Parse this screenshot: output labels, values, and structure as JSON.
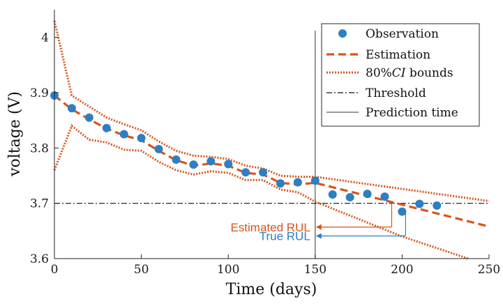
{
  "chart_data": {
    "type": "line",
    "title": "",
    "xlabel": "Time (days)",
    "ylabel": "voltage (V)",
    "xlim": [
      0,
      250
    ],
    "ylim": [
      3.6,
      4.05
    ],
    "xticks": [
      0,
      50,
      100,
      150,
      200,
      250
    ],
    "yticks": [
      3.6,
      3.7,
      3.8,
      3.9,
      4.0
    ],
    "ytick_labels": [
      "3.6",
      "3.7",
      "3.8",
      "3.9",
      "4"
    ],
    "grid": false,
    "legend_position": "top-right",
    "colors": {
      "observation": "#2e7fc2",
      "estimation": "#d9541a",
      "threshold": "#111111",
      "prediction_time": "#333333",
      "estimated_rul": "#d9541a",
      "true_rul": "#2e7fc2"
    },
    "series": [
      {
        "name": "Observation",
        "style": "markers",
        "x": [
          0,
          10,
          20,
          30,
          40,
          50,
          60,
          70,
          80,
          90,
          100,
          110,
          120,
          130,
          140,
          150,
          160,
          170,
          180,
          190,
          200,
          210,
          220
        ],
        "y": [
          3.895,
          3.872,
          3.855,
          3.836,
          3.825,
          3.818,
          3.798,
          3.779,
          3.77,
          3.776,
          3.771,
          3.756,
          3.756,
          3.736,
          3.738,
          3.741,
          3.716,
          3.711,
          3.717,
          3.712,
          3.685,
          3.699,
          3.696
        ]
      },
      {
        "name": "Estimation",
        "style": "dashed",
        "x": [
          0,
          10,
          20,
          30,
          40,
          50,
          60,
          70,
          80,
          90,
          100,
          110,
          120,
          130,
          140,
          150,
          250
        ],
        "y": [
          3.895,
          3.87,
          3.852,
          3.835,
          3.823,
          3.814,
          3.795,
          3.778,
          3.768,
          3.772,
          3.768,
          3.755,
          3.752,
          3.737,
          3.734,
          3.737,
          3.658
        ]
      },
      {
        "name": "80%CI bounds",
        "style": "dotted",
        "upper": {
          "x": [
            0,
            10,
            20,
            30,
            40,
            50,
            60,
            70,
            80,
            90,
            100,
            110,
            120,
            130,
            140,
            150,
            250
          ],
          "y": [
            4.03,
            3.895,
            3.875,
            3.855,
            3.843,
            3.832,
            3.812,
            3.795,
            3.786,
            3.784,
            3.78,
            3.768,
            3.763,
            3.75,
            3.748,
            3.748,
            3.704
          ]
        },
        "lower": {
          "x": [
            0,
            10,
            20,
            30,
            40,
            50,
            60,
            70,
            80,
            90,
            100,
            110,
            120,
            130,
            140,
            150,
            200,
            238
          ],
          "y": [
            3.76,
            3.84,
            3.815,
            3.81,
            3.797,
            3.795,
            3.775,
            3.76,
            3.752,
            3.758,
            3.755,
            3.742,
            3.742,
            3.725,
            3.72,
            3.703,
            3.64,
            3.6
          ]
        }
      },
      {
        "name": "Threshold",
        "style": "dashdot",
        "y": 3.7
      },
      {
        "name": "Prediction time",
        "style": "solid",
        "x": 150
      }
    ],
    "annotations": [
      {
        "text": "Estimated RUL",
        "from_x": 150,
        "to_x": 194,
        "y": 3.657,
        "drop_y": 3.7
      },
      {
        "text": "True RUL",
        "from_x": 150,
        "to_x": 202,
        "y": 3.641,
        "drop_y": 3.685
      }
    ]
  },
  "legend": {
    "observation": "Observation",
    "estimation": "Estimation",
    "ci_pct": "80%",
    "ci_symbol": "CI",
    "ci_rest": " bounds",
    "threshold": "Threshold",
    "prediction_time": "Prediction time"
  }
}
